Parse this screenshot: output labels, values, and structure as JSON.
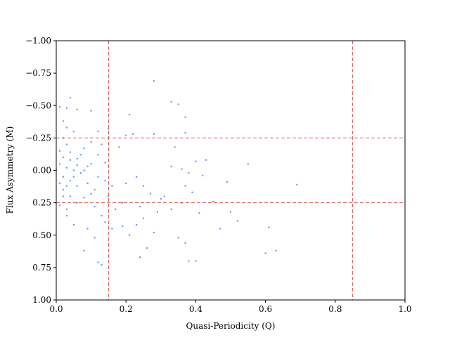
{
  "chart_data": {
    "type": "scatter",
    "x_label": "Quasi-Periodicity (Q)",
    "y_label": "Flux Asymmetry (M)",
    "xlim": [
      0,
      1
    ],
    "ylim": [
      -1,
      1
    ],
    "y_inverted": true,
    "xticks": [
      {
        "value": 0,
        "label": "0.0"
      },
      0.2,
      0.4,
      0.6,
      0.8,
      {
        "value": 1,
        "label": "1.0"
      }
    ],
    "yticks": [
      {
        "value": -1,
        "label": "−1.00"
      },
      {
        "value": -0.75,
        "label": "−0.75"
      },
      {
        "value": -0.5,
        "label": "−0.50"
      },
      {
        "value": -0.25,
        "label": "−0.25"
      },
      {
        "value": 0,
        "label": "0.00"
      },
      0.25,
      {
        "value": 0.5,
        "label": "0.50"
      },
      0.75,
      {
        "value": 1,
        "label": "1.00"
      }
    ],
    "vlines": [
      0.15,
      0.85
    ],
    "hlines": [
      -0.25,
      0.25
    ],
    "ref_color": "#d9534f",
    "series": [
      {
        "color": "#6495ed",
        "x": [
          0.28,
          0.33,
          0.35,
          0.37,
          0.04,
          0.01,
          0.03,
          0.06,
          0.1,
          0.21,
          0.37,
          0.02,
          0.03,
          0.05,
          0.12,
          0.15,
          0.22,
          0.28,
          0.2,
          0.34,
          0.1,
          0.13,
          0.08,
          0.18,
          0.04,
          0.02,
          0.06,
          0.01,
          0.03,
          0.05,
          0.07,
          0.09,
          0.12,
          0.14,
          0.16,
          0.2,
          0.23,
          0.25,
          0.33,
          0.36,
          0.4,
          0.43,
          0.55,
          0.49,
          0.69,
          0.37,
          0.38,
          0.42,
          0.31,
          0.3,
          0.27,
          0.02,
          0.04,
          0.01,
          0.03,
          0.06,
          0.08,
          0.1,
          0.11,
          0.13,
          0.14,
          0.16,
          0.19,
          0.21,
          0.23,
          0.25,
          0.28,
          0.35,
          0.37,
          0.41,
          0.47,
          0.52,
          0.61,
          0.6,
          0.63,
          0.38,
          0.4,
          0.24,
          0.26,
          0.12,
          0.13,
          0.08,
          0.11,
          0.05,
          0.09,
          0.03,
          0.02,
          0.01,
          0.04,
          0.06,
          0.07,
          0.03,
          0.02,
          0.09,
          0.11,
          0.15,
          0.17,
          0.19,
          0.24,
          0.29,
          0.33,
          0.36,
          0.39,
          0.45,
          0.5,
          0.0,
          0.01,
          0.02,
          0.05,
          0.08,
          0.1,
          0.12,
          0.14,
          0.03,
          0.06,
          0.04
        ],
        "values": [
          -0.69,
          -0.53,
          -0.51,
          -0.41,
          -0.56,
          -0.49,
          -0.48,
          -0.47,
          -0.46,
          -0.43,
          -0.29,
          -0.38,
          -0.33,
          -0.3,
          -0.3,
          -0.32,
          -0.28,
          -0.28,
          -0.27,
          -0.18,
          -0.22,
          -0.2,
          -0.17,
          -0.18,
          -0.14,
          -0.1,
          -0.09,
          -0.05,
          -0.02,
          0.0,
          0.02,
          -0.03,
          0.05,
          0.08,
          0.12,
          0.1,
          0.05,
          0.12,
          -0.03,
          -0.01,
          -0.07,
          -0.08,
          -0.05,
          0.09,
          0.11,
          0.12,
          0.02,
          0.04,
          0.2,
          0.22,
          0.18,
          0.15,
          0.2,
          0.27,
          0.3,
          0.25,
          0.21,
          0.18,
          0.28,
          0.35,
          0.4,
          0.45,
          0.43,
          0.5,
          0.42,
          0.37,
          0.48,
          0.52,
          0.56,
          0.33,
          0.45,
          0.39,
          0.44,
          0.64,
          0.62,
          0.7,
          0.7,
          0.67,
          0.6,
          0.71,
          0.73,
          0.62,
          0.52,
          0.42,
          0.45,
          0.35,
          0.05,
          0.1,
          0.08,
          0.12,
          -0.12,
          -0.2,
          -0.25,
          0.1,
          0.15,
          0.2,
          0.3,
          0.25,
          0.28,
          0.32,
          0.3,
          0.25,
          0.17,
          0.24,
          0.32,
          0.0,
          -0.15,
          0.2,
          0.05,
          0.0,
          -0.05,
          -0.12,
          -0.06,
          0.12,
          -0.04,
          -0.08
        ]
      }
    ]
  }
}
